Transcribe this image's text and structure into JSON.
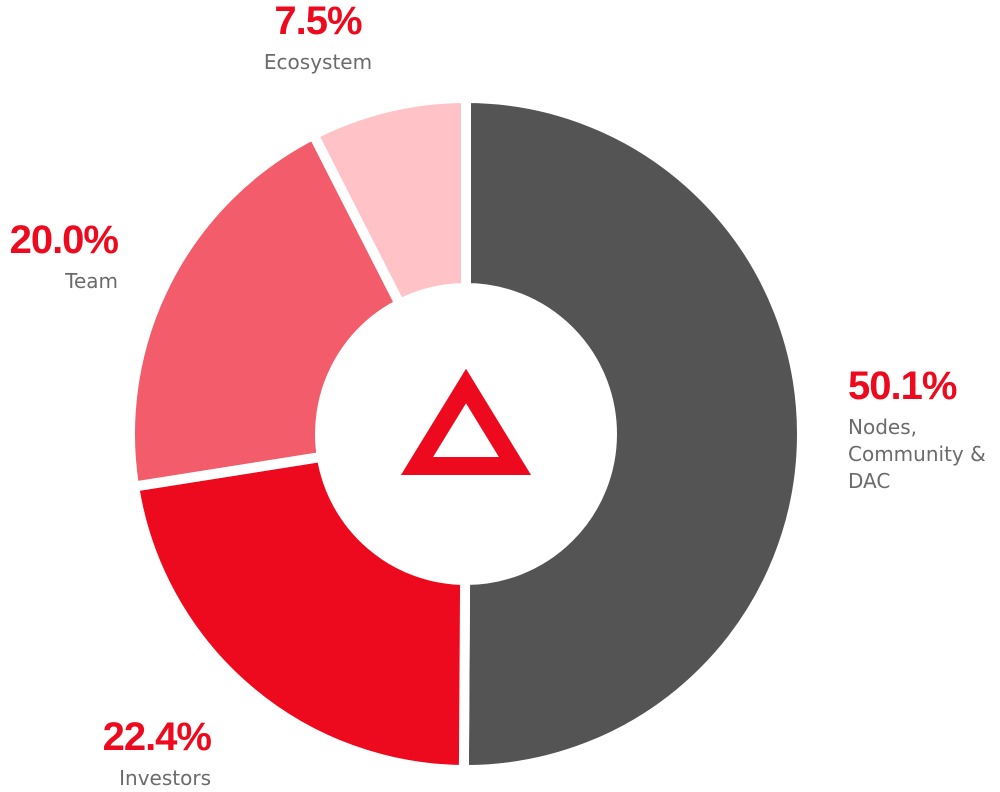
{
  "chart_data": {
    "type": "donut",
    "categories": [
      "Nodes, Community & DAC",
      "Investors",
      "Team",
      "Ecosystem"
    ],
    "values": [
      50.1,
      22.4,
      20.0,
      7.5
    ],
    "value_labels": [
      "50.1%",
      "22.4%",
      "20.0%",
      "7.5%"
    ],
    "colors": [
      "#545454",
      "#ee0a1e",
      "#f25c6b",
      "#ffc2c7"
    ]
  }
}
